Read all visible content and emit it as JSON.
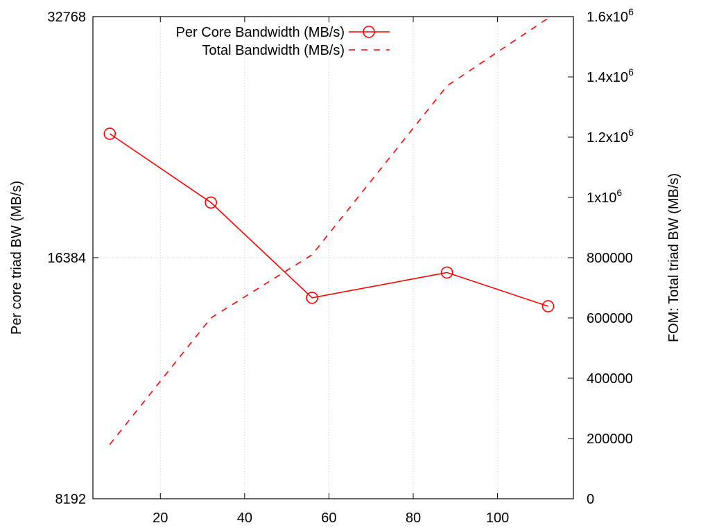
{
  "chart_data": {
    "type": "line",
    "title": "",
    "xlabel": "",
    "ylabel": "Per core triad BW (MB/s)",
    "y2label": "FOM: Total triad BW (MB/s)",
    "xlim": [
      4,
      118
    ],
    "ylim": [
      8192,
      32768
    ],
    "yscale": "log2",
    "y2lim": [
      0,
      1600000
    ],
    "x_ticks": [
      "20",
      "40",
      "60",
      "80",
      "100"
    ],
    "y_ticks": [
      "8192",
      "16384",
      "32768"
    ],
    "y2_ticks": [
      {
        "base": "0"
      },
      {
        "base": "200000"
      },
      {
        "base": "400000"
      },
      {
        "base": "600000"
      },
      {
        "base": "800000"
      },
      {
        "base": "1x10",
        "exp": "6"
      },
      {
        "base": "1.2x10",
        "exp": "6"
      },
      {
        "base": "1.4x10",
        "exp": "6"
      },
      {
        "base": "1.6x10",
        "exp": "6"
      }
    ],
    "grid": true,
    "legend_position": "top-center",
    "series": [
      {
        "name": "Per Core Bandwidth (MB/s)",
        "axis": "left",
        "style": "solid-circles",
        "color": "#ff0000",
        "x": [
          8,
          32,
          56,
          88,
          112
        ],
        "values": [
          23400,
          19200,
          14600,
          15700,
          14250
        ]
      },
      {
        "name": "Total Bandwidth (MB/s)",
        "axis": "right",
        "style": "dashed",
        "color": "#ff0000",
        "x": [
          8,
          32,
          56,
          88,
          112
        ],
        "values": [
          180000,
          600000,
          810000,
          1370000,
          1595000
        ]
      }
    ]
  }
}
